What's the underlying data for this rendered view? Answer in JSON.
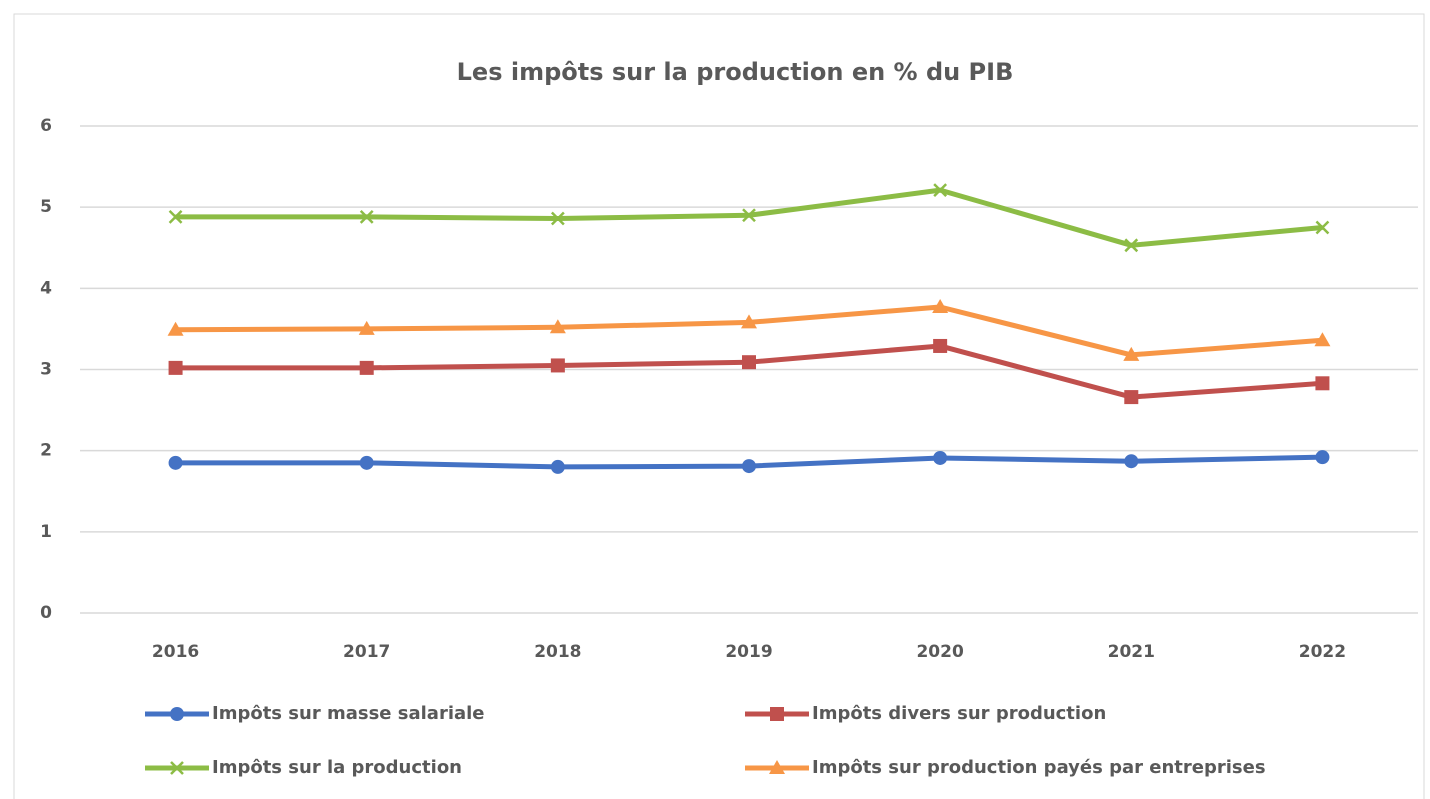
{
  "chart_data": {
    "type": "line",
    "title": "Les impôts sur la production en % du PIB",
    "categories": [
      "2016",
      "2017",
      "2018",
      "2019",
      "2020",
      "2021",
      "2022"
    ],
    "series": [
      {
        "name": "Impôts sur masse salariale",
        "color": "#4472c4",
        "marker": "circle",
        "values": [
          1.85,
          1.85,
          1.8,
          1.81,
          1.91,
          1.87,
          1.92
        ]
      },
      {
        "name": "Impôts divers sur production",
        "color": "#c0504d",
        "marker": "square",
        "values": [
          3.02,
          3.02,
          3.05,
          3.09,
          3.29,
          2.66,
          2.83
        ]
      },
      {
        "name": "Impôts sur la production",
        "color": "#8cbc45",
        "marker": "x",
        "values": [
          4.88,
          4.88,
          4.86,
          4.9,
          5.21,
          4.53,
          4.75
        ]
      },
      {
        "name": "Impôts sur production payés par entreprises",
        "color": "#f79646",
        "marker": "triangle",
        "values": [
          3.49,
          3.5,
          3.52,
          3.58,
          3.77,
          3.18,
          3.36
        ]
      }
    ],
    "ylim": [
      0,
      6
    ],
    "yticks": [
      0,
      1,
      2,
      3,
      4,
      5,
      6
    ],
    "grid": true,
    "legend": "bottom"
  }
}
